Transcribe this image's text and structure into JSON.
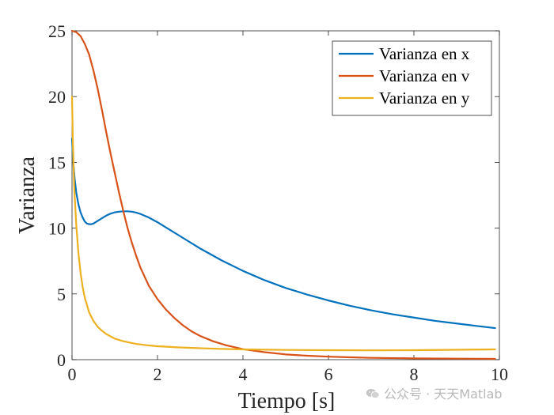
{
  "chart_data": {
    "type": "line",
    "title": "",
    "xlabel": "Tiempo [s]",
    "ylabel": "Varianza",
    "xlim": [
      0,
      10
    ],
    "ylim": [
      0,
      25
    ],
    "xticks": [
      0,
      2,
      4,
      6,
      8,
      10
    ],
    "yticks": [
      0,
      5,
      10,
      15,
      20,
      25
    ],
    "legend_position": "top-right",
    "grid": false,
    "series": [
      {
        "name": "Varianza en x",
        "color": "#0072BD",
        "x": [
          0,
          0.03,
          0.06,
          0.1,
          0.15,
          0.2,
          0.25,
          0.3,
          0.35,
          0.4,
          0.45,
          0.5,
          0.6,
          0.7,
          0.8,
          0.9,
          1.0,
          1.1,
          1.2,
          1.3,
          1.4,
          1.5,
          1.6,
          1.8,
          2.0,
          2.2,
          2.5,
          3.0,
          3.5,
          4.0,
          4.5,
          5.0,
          5.5,
          6.0,
          6.5,
          7.0,
          7.5,
          8.0,
          8.5,
          9.0,
          9.5,
          9.9
        ],
        "y": [
          16.8,
          15.0,
          13.8,
          12.7,
          11.8,
          11.2,
          10.8,
          10.5,
          10.35,
          10.3,
          10.3,
          10.35,
          10.55,
          10.75,
          10.95,
          11.1,
          11.2,
          11.25,
          11.28,
          11.28,
          11.25,
          11.18,
          11.08,
          10.8,
          10.45,
          10.05,
          9.45,
          8.45,
          7.55,
          6.75,
          6.05,
          5.45,
          4.95,
          4.5,
          4.1,
          3.75,
          3.45,
          3.2,
          2.95,
          2.75,
          2.55,
          2.4
        ]
      },
      {
        "name": "Varianza en v",
        "color": "#D95319",
        "x": [
          0,
          0.1,
          0.2,
          0.3,
          0.4,
          0.5,
          0.6,
          0.7,
          0.8,
          0.9,
          1.0,
          1.1,
          1.2,
          1.3,
          1.4,
          1.5,
          1.6,
          1.8,
          2.0,
          2.2,
          2.4,
          2.6,
          2.8,
          3.0,
          3.3,
          3.6,
          4.0,
          4.5,
          5.0,
          5.5,
          6.0,
          6.5,
          7.0,
          8.0,
          9.0,
          9.9
        ],
        "y": [
          25.0,
          24.9,
          24.6,
          24.0,
          23.2,
          22.0,
          20.6,
          19.0,
          17.3,
          15.7,
          14.2,
          12.7,
          11.3,
          10.0,
          8.9,
          7.9,
          7.0,
          5.6,
          4.6,
          3.8,
          3.15,
          2.6,
          2.15,
          1.8,
          1.4,
          1.1,
          0.8,
          0.57,
          0.4,
          0.3,
          0.23,
          0.18,
          0.14,
          0.1,
          0.08,
          0.06
        ]
      },
      {
        "name": "Varianza en y",
        "color": "#EDB120",
        "x": [
          0,
          0.02,
          0.05,
          0.1,
          0.15,
          0.2,
          0.25,
          0.3,
          0.4,
          0.5,
          0.6,
          0.7,
          0.8,
          1.0,
          1.2,
          1.5,
          1.8,
          2.0,
          2.5,
          3.0,
          3.5,
          4.0,
          5.0,
          6.0,
          7.0,
          8.0,
          9.0,
          9.9
        ],
        "y": [
          20.0,
          16.5,
          13.2,
          10.2,
          8.1,
          6.6,
          5.5,
          4.7,
          3.6,
          2.95,
          2.5,
          2.2,
          1.95,
          1.6,
          1.4,
          1.2,
          1.08,
          1.02,
          0.93,
          0.87,
          0.82,
          0.78,
          0.74,
          0.72,
          0.71,
          0.72,
          0.75,
          0.78
        ]
      }
    ]
  },
  "watermark": {
    "text": "公众号 · 天天Matlab"
  }
}
